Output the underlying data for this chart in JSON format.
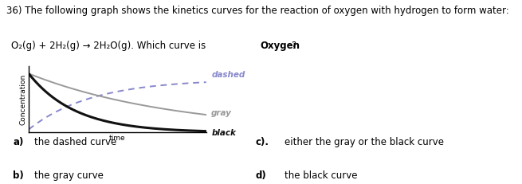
{
  "title_line1": "36) The following graph shows the kinetics curves for the reaction of oxygen with hydrogen to form water:",
  "title_line2_pre": "O₂(g) + 2H₂(g) → 2H₂O(g). Which curve is ",
  "title_bold": "Oxygen",
  "title_end": "?",
  "xlabel": "time",
  "ylabel": "Concentration",
  "curve_labels": [
    "dashed",
    "gray",
    "black"
  ],
  "curve_colors": [
    "#8888cc",
    "#999999",
    "#111111"
  ],
  "curve_linewidths": [
    1.4,
    1.4,
    2.2
  ],
  "answers": [
    {
      "label": "a)",
      "text": "the dashed curve",
      "bold_label": true
    },
    {
      "label": "b)",
      "text": "the gray curve",
      "bold_label": true
    },
    {
      "label": "c).",
      "text": "either the gray or the black curve",
      "bold_label": true
    },
    {
      "label": "d)",
      "text": "the black curve",
      "bold_label": true
    }
  ],
  "background_color": "#ffffff",
  "title_fontsize": 8.5,
  "label_fontsize": 7.5,
  "answer_fontsize": 8.5,
  "axis_fontsize": 6.5
}
